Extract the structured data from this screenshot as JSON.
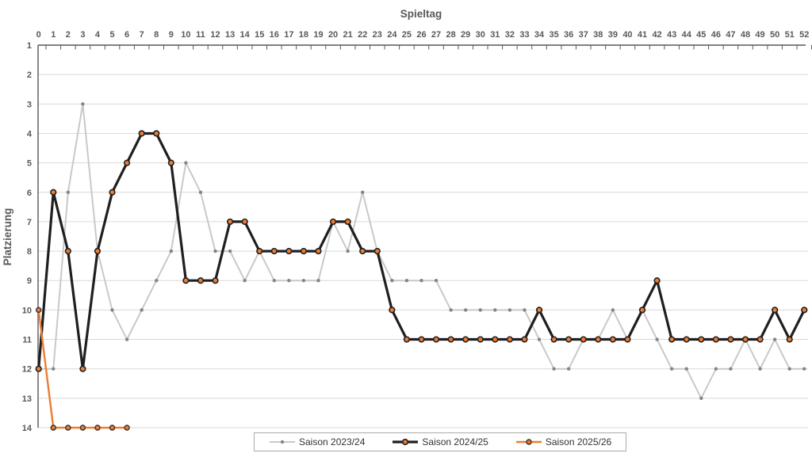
{
  "chart_data": {
    "type": "line",
    "xlabel": "Spieltag",
    "ylabel": "Platzierung",
    "x_axis": {
      "min": 0,
      "max": 52,
      "step": 1,
      "position": "top",
      "tick_labels": [
        "0",
        "1",
        "2",
        "3",
        "4",
        "5",
        "6",
        "7",
        "8",
        "9",
        "10",
        "11",
        "12",
        "13",
        "14",
        "15",
        "16",
        "17",
        "18",
        "19",
        "20",
        "21",
        "22",
        "23",
        "24",
        "25",
        "26",
        "27",
        "28",
        "29",
        "30",
        "31",
        "32",
        "33",
        "34",
        "35",
        "36",
        "37",
        "38",
        "39",
        "40",
        "41",
        "42",
        "43",
        "44",
        "45",
        "46",
        "47",
        "48",
        "49",
        "50",
        "51",
        "52"
      ]
    },
    "y_axis": {
      "min": 1,
      "max": 14,
      "step": 1,
      "inverted": true,
      "tick_labels": [
        "1",
        "2",
        "3",
        "4",
        "5",
        "6",
        "7",
        "8",
        "9",
        "10",
        "11",
        "12",
        "13",
        "14"
      ]
    },
    "grid": "horizontal",
    "legend_position": "bottom-center",
    "style": {
      "axis_color": "#595959",
      "grid_color": "#d9d9d9",
      "tick_label_color": "#595959",
      "legend_border_color": "#ababab",
      "background": "#ffffff"
    },
    "series": [
      {
        "name": "Saison 2023/24",
        "line_color": "#c9c9c9",
        "marker": "dot",
        "marker_fill": "#858585",
        "marker_stroke": "none",
        "values": [
          12,
          12,
          6,
          3,
          8,
          10,
          11,
          10,
          9,
          8,
          5,
          6,
          8,
          8,
          9,
          8,
          9,
          9,
          9,
          9,
          7,
          8,
          6,
          8,
          9,
          9,
          9,
          9,
          10,
          10,
          10,
          10,
          10,
          10,
          11,
          12,
          12,
          11,
          11,
          10,
          11,
          10,
          11,
          12,
          12,
          13,
          12,
          12,
          11,
          12,
          11,
          12,
          12
        ]
      },
      {
        "name": "Saison 2024/25",
        "line_color": "#1f1f1f",
        "marker": "circle",
        "marker_fill": "#ed7d31",
        "marker_stroke": "#1f1f1f",
        "values": [
          12,
          6,
          8,
          12,
          8,
          6,
          5,
          4,
          4,
          5,
          9,
          9,
          9,
          7,
          7,
          8,
          8,
          8,
          8,
          8,
          7,
          7,
          8,
          8,
          10,
          11,
          11,
          11,
          11,
          11,
          11,
          11,
          11,
          11,
          10,
          11,
          11,
          11,
          11,
          11,
          11,
          10,
          9,
          11,
          11,
          11,
          11,
          11,
          11,
          11,
          10,
          11,
          10
        ]
      },
      {
        "name": "Saison 2025/26",
        "line_color": "#ed7d31",
        "marker": "circle",
        "marker_fill": "#ed7d31",
        "marker_stroke": "#333333",
        "values": [
          10,
          14,
          14,
          14,
          14,
          14,
          14
        ]
      }
    ]
  }
}
